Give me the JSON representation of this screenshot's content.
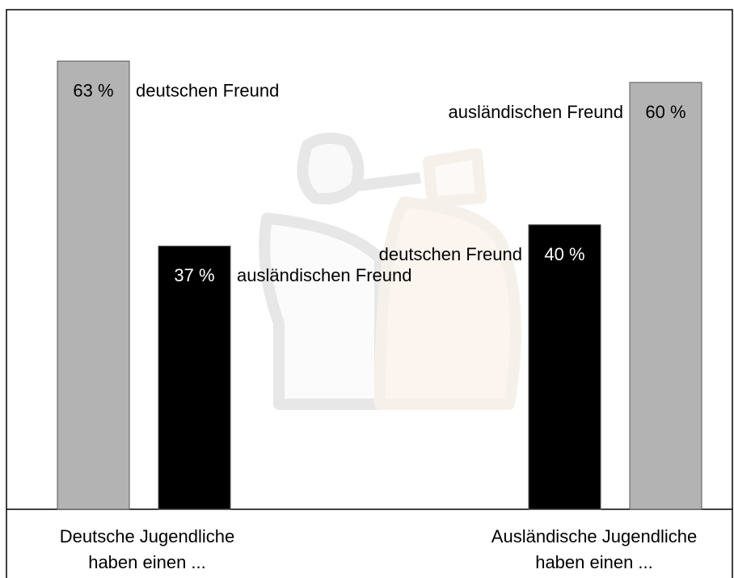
{
  "chart_data": {
    "type": "bar",
    "categories": [
      [
        "Deutsche Jugendliche",
        "haben einen ..."
      ],
      [
        "Ausländische Jugendliche",
        "haben einen ..."
      ]
    ],
    "series": [
      {
        "name": "deutschen Freund",
        "colors": [
          "#b3b3b3",
          "#000000"
        ],
        "values": [
          63,
          40
        ],
        "value_labels": [
          "63 %",
          "40 %"
        ]
      },
      {
        "name": "ausländischen Freund",
        "colors": [
          "#000000",
          "#b3b3b3"
        ],
        "values": [
          37,
          60
        ],
        "value_labels": [
          "37 %",
          "60 %"
        ]
      }
    ],
    "ylim": [
      0,
      70
    ]
  }
}
